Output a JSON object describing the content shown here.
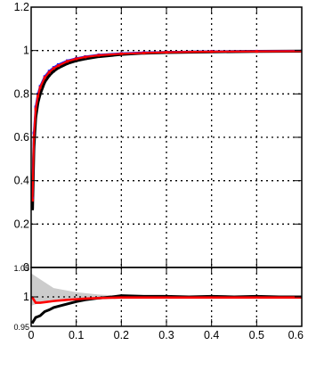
{
  "chart_data": [
    {
      "type": "scatter",
      "title": "",
      "xlabel": "",
      "ylabel": "",
      "xlim": [
        0,
        0.6
      ],
      "ylim": [
        0,
        1.2
      ],
      "grid": true,
      "x_ticks": [
        "0.1",
        "0.2",
        "0.3",
        "0.4",
        "0.5",
        "0.6"
      ],
      "y_ticks": [
        "0",
        "0.2",
        "0.4",
        "0.6",
        "0.8",
        "1",
        "1.2"
      ],
      "series": [
        {
          "color": "#000000",
          "x": [
            0.003,
            0.006,
            0.01,
            0.015,
            0.02,
            0.03,
            0.04,
            0.05,
            0.06,
            0.08,
            0.1,
            0.12,
            0.15,
            0.2,
            0.25,
            0.3,
            0.4,
            0.5,
            0.6
          ],
          "y": [
            0.27,
            0.55,
            0.69,
            0.76,
            0.8,
            0.855,
            0.885,
            0.905,
            0.92,
            0.94,
            0.953,
            0.962,
            0.972,
            0.982,
            0.988,
            0.991,
            0.994,
            0.996,
            0.997
          ]
        },
        {
          "color": "#1a1aff",
          "x": [
            0.003,
            0.006,
            0.01,
            0.015,
            0.02,
            0.03,
            0.04,
            0.05,
            0.06,
            0.08,
            0.1,
            0.12,
            0.15,
            0.2,
            0.25,
            0.3,
            0.4,
            0.5,
            0.6
          ],
          "y": [
            0.32,
            0.62,
            0.74,
            0.8,
            0.835,
            0.88,
            0.905,
            0.922,
            0.935,
            0.953,
            0.964,
            0.972,
            0.98,
            0.987,
            0.991,
            0.993,
            0.996,
            0.997,
            0.998
          ]
        },
        {
          "color": "#ff0000",
          "x": [
            0.003,
            0.006,
            0.01,
            0.015,
            0.02,
            0.03,
            0.04,
            0.05,
            0.06,
            0.08,
            0.1,
            0.12,
            0.15,
            0.2,
            0.25,
            0.3,
            0.4,
            0.5,
            0.6
          ],
          "y": [
            0.31,
            0.6,
            0.73,
            0.79,
            0.83,
            0.875,
            0.9,
            0.918,
            0.93,
            0.95,
            0.962,
            0.97,
            0.978,
            0.985,
            0.989,
            0.992,
            0.995,
            0.996,
            0.997
          ]
        }
      ]
    },
    {
      "type": "line",
      "title": "",
      "xlabel": "",
      "ylabel": "",
      "xlim": [
        0,
        0.6
      ],
      "ylim": [
        0.95,
        1.05
      ],
      "grid": true,
      "x_ticks": [
        "0",
        "0.1",
        "0.2",
        "0.3",
        "0.4",
        "0.5",
        "0.6"
      ],
      "y_ticks": [
        "0.95",
        "1",
        "1.05"
      ],
      "band": {
        "color": "#cccccc",
        "x": [
          0,
          0.02,
          0.05,
          0.1,
          0.15,
          0.2,
          0.3,
          0.4,
          0.5,
          0.6
        ],
        "lower": [
          0.985,
          0.99,
          0.993,
          0.995,
          0.996,
          0.997,
          0.997,
          0.997,
          0.997,
          0.997
        ],
        "upper": [
          1.04,
          1.03,
          1.015,
          1.008,
          1.004,
          1.002,
          1.002,
          1.002,
          1.002,
          1.002
        ]
      },
      "series": [
        {
          "color": "#000000",
          "x": [
            0.002,
            0.01,
            0.02,
            0.03,
            0.04,
            0.05,
            0.06,
            0.08,
            0.1,
            0.12,
            0.15,
            0.18,
            0.2,
            0.25,
            0.3,
            0.35,
            0.4,
            0.45,
            0.5,
            0.55,
            0.6
          ],
          "y": [
            0.955,
            0.965,
            0.968,
            0.975,
            0.978,
            0.982,
            0.984,
            0.988,
            0.992,
            0.995,
            0.998,
            1.0,
            1.002,
            1.001,
            1.001,
            1.0,
            1.001,
            1.0,
            1.001,
            1.0,
            1.0
          ]
        },
        {
          "color": "#ff0000",
          "x": [
            0.002,
            0.01,
            0.02,
            0.03,
            0.05,
            0.08,
            0.1,
            0.12,
            0.15,
            0.2,
            0.3,
            0.4,
            0.5,
            0.6
          ],
          "y": [
            1.0,
            0.99,
            0.99,
            0.991,
            0.993,
            0.995,
            0.996,
            0.997,
            0.998,
            0.999,
            0.999,
            0.999,
            0.999,
            0.999
          ]
        }
      ]
    }
  ]
}
